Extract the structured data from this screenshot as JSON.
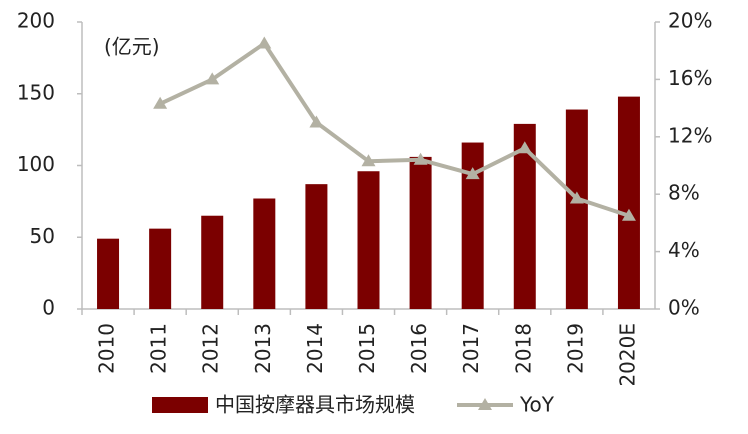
{
  "chart_data": {
    "type": "bar",
    "annotation": "(亿元)",
    "categories": [
      "2010",
      "2011",
      "2012",
      "2013",
      "2014",
      "2015",
      "2016",
      "2017",
      "2018",
      "2019",
      "2020E"
    ],
    "series": [
      {
        "name": "中国按摩器具市场规模",
        "type": "bar",
        "color": "#7b0000",
        "values": [
          49,
          56,
          65,
          77,
          87,
          96,
          106,
          116,
          129,
          139,
          148
        ]
      },
      {
        "name": "YoY",
        "type": "line",
        "axis": "y2",
        "color": "#b3b1a3",
        "values": [
          null,
          14.3,
          16.0,
          18.5,
          13.0,
          10.3,
          10.4,
          9.4,
          11.2,
          7.7,
          6.5
        ]
      }
    ],
    "ylim": [
      0,
      200
    ],
    "yticks": [
      0,
      50,
      100,
      150,
      200
    ],
    "y2lim": [
      0,
      20
    ],
    "y2ticks": [
      {
        "value": 0,
        "label": "0%"
      },
      {
        "value": 4,
        "label": "4%"
      },
      {
        "value": 8,
        "label": "8%"
      },
      {
        "value": 12,
        "label": "12%"
      },
      {
        "value": 16,
        "label": "16%"
      },
      {
        "value": 20,
        "label": "20%"
      }
    ],
    "grid": false
  }
}
